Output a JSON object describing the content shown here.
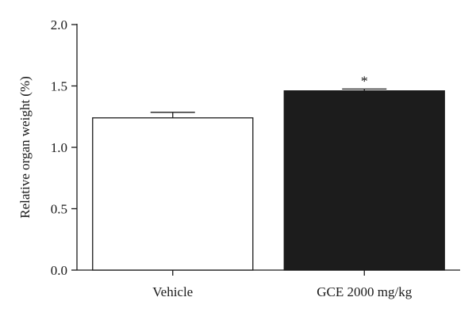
{
  "chart_data": {
    "type": "bar",
    "title": "",
    "xlabel": "",
    "ylabel": "Relative organ weight (%)",
    "ylim": [
      0,
      2.0
    ],
    "yticks": [
      "0.0",
      "0.5",
      "1.0",
      "1.5",
      "2.0"
    ],
    "grid": false,
    "legend": "none",
    "categories": [
      "Vehicle",
      "GCE 2000 mg/kg"
    ],
    "values": [
      1.24,
      1.46
    ],
    "error_upper": [
      1.285,
      1.475
    ],
    "annotations": [
      "",
      "*"
    ],
    "colors": {
      "fills": [
        "#ffffff",
        "#1c1c1c"
      ],
      "stroke": "#1a1a1a"
    }
  }
}
